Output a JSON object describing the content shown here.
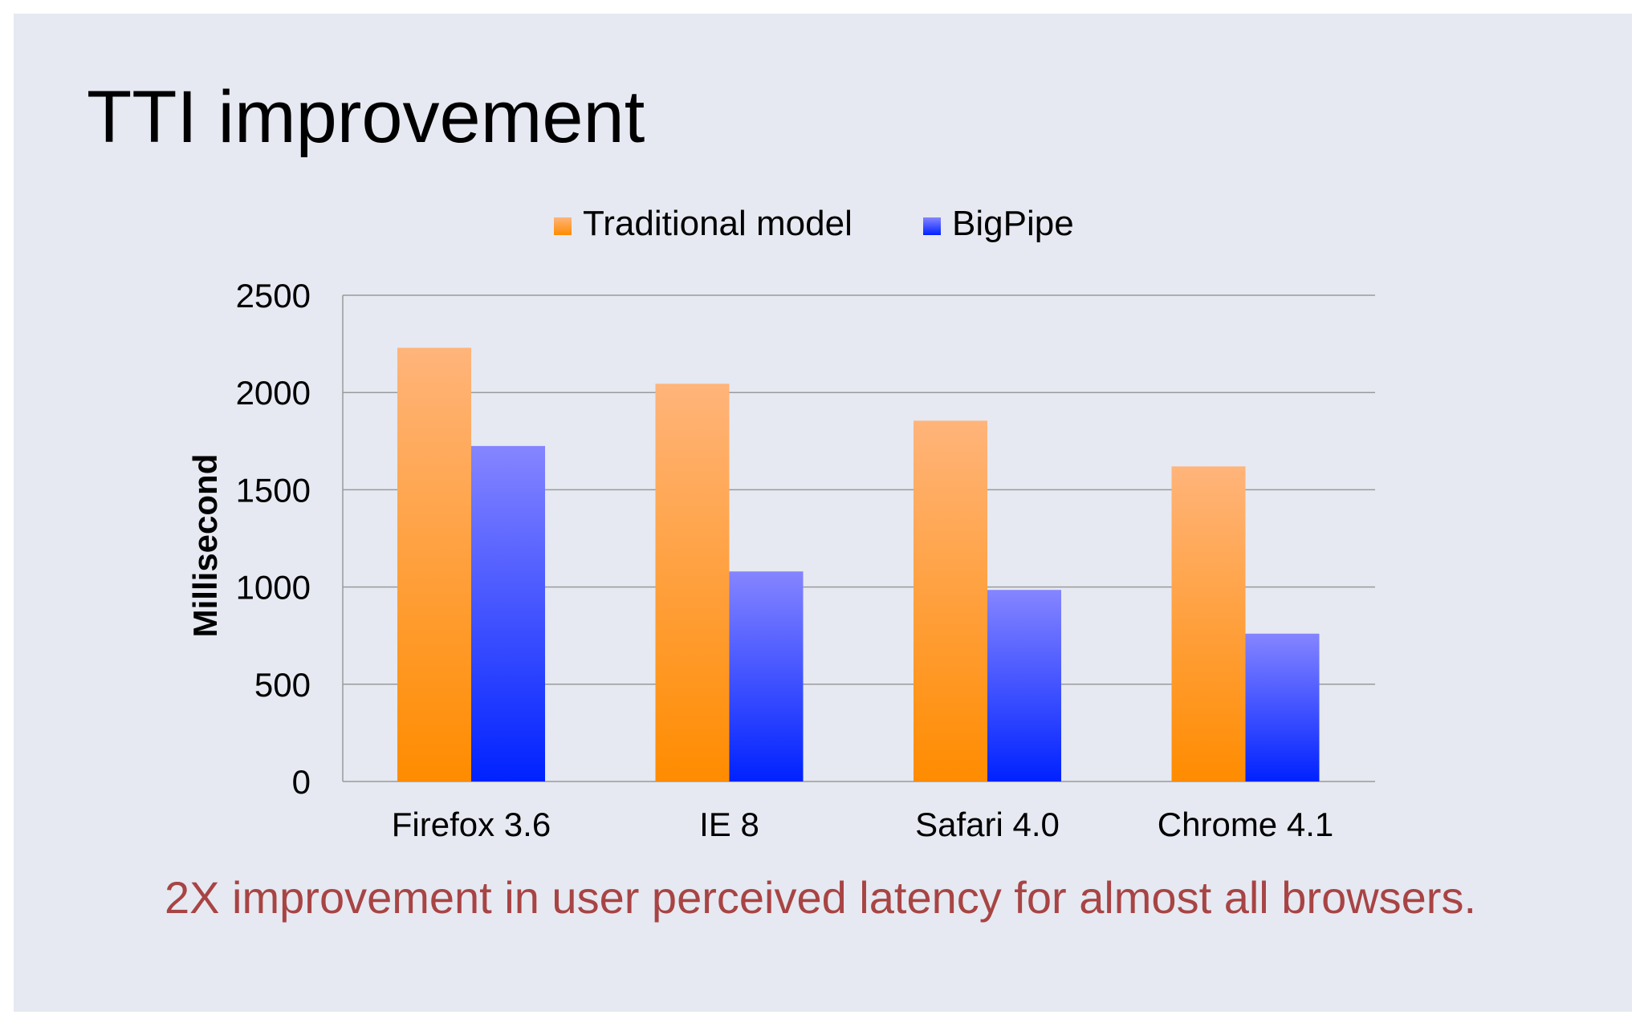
{
  "slide": {
    "title": "TTI improvement",
    "caption": "2X improvement in user perceived latency for almost all browsers."
  },
  "chart_data": {
    "type": "bar",
    "categories": [
      "Firefox 3.6",
      "IE 8",
      "Safari 4.0",
      "Chrome 4.1"
    ],
    "series": [
      {
        "name": "Traditional model",
        "values": [
          2230,
          2045,
          1855,
          1620
        ],
        "color_top": "#ffb47a",
        "color_bottom": "#ff8c00"
      },
      {
        "name": "BigPipe",
        "values": [
          1725,
          1080,
          985,
          760
        ],
        "color_top": "#8585ff",
        "color_bottom": "#0022ff"
      }
    ],
    "ylabel": "Millisecond",
    "ylim": [
      0,
      2500
    ],
    "yticks": [
      0,
      500,
      1000,
      1500,
      2000,
      2500
    ],
    "grid": true,
    "legend": "top-center"
  },
  "colors": {
    "background": "#e6e9f1",
    "caption": "#a84444",
    "grid": "#9a9a9a"
  }
}
